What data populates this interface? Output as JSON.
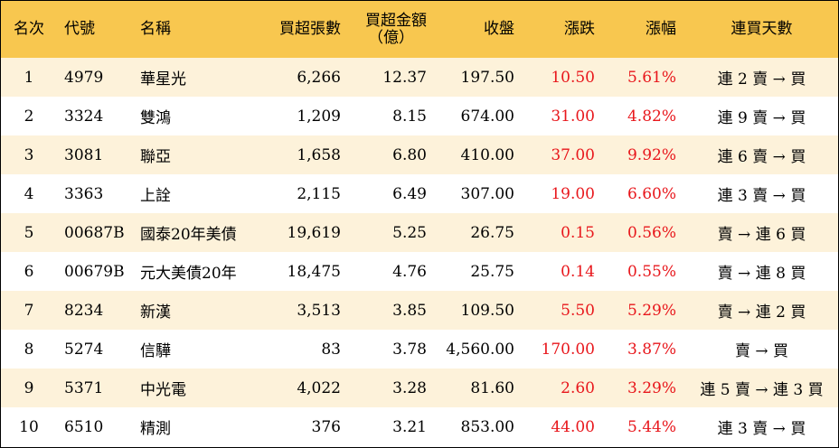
{
  "headers": {
    "rank": "名次",
    "code": "代號",
    "name": "名稱",
    "net_buy_lots": "買超張數",
    "net_buy_amount_line1": "買超金額",
    "net_buy_amount_line2": "（億）",
    "close": "收盤",
    "change": "漲跌",
    "change_pct": "漲幅",
    "streak": "連買天數"
  },
  "colors": {
    "header_bg": "#f8c74f",
    "alt_row_bg": "#fdf2da",
    "positive": "#e8161b"
  },
  "rows": [
    {
      "rank": "1",
      "code": "4979",
      "name": "華星光",
      "lots": "6,266",
      "amount": "12.37",
      "close": "197.50",
      "change": "10.50",
      "pct": "5.61%",
      "streak": "連 2 賣 → 買"
    },
    {
      "rank": "2",
      "code": "3324",
      "name": "雙鴻",
      "lots": "1,209",
      "amount": "8.15",
      "close": "674.00",
      "change": "31.00",
      "pct": "4.82%",
      "streak": "連 9 賣 → 買"
    },
    {
      "rank": "3",
      "code": "3081",
      "name": "聯亞",
      "lots": "1,658",
      "amount": "6.80",
      "close": "410.00",
      "change": "37.00",
      "pct": "9.92%",
      "streak": "連 6 賣 → 買"
    },
    {
      "rank": "4",
      "code": "3363",
      "name": "上詮",
      "lots": "2,115",
      "amount": "6.49",
      "close": "307.00",
      "change": "19.00",
      "pct": "6.60%",
      "streak": "連 3 賣 → 買"
    },
    {
      "rank": "5",
      "code": "00687B",
      "name": "國泰20年美債",
      "lots": "19,619",
      "amount": "5.25",
      "close": "26.75",
      "change": "0.15",
      "pct": "0.56%",
      "streak": "賣 → 連 6 買"
    },
    {
      "rank": "6",
      "code": "00679B",
      "name": "元大美債20年",
      "lots": "18,475",
      "amount": "4.76",
      "close": "25.75",
      "change": "0.14",
      "pct": "0.55%",
      "streak": "賣 → 連 8 買"
    },
    {
      "rank": "7",
      "code": "8234",
      "name": "新漢",
      "lots": "3,513",
      "amount": "3.85",
      "close": "109.50",
      "change": "5.50",
      "pct": "5.29%",
      "streak": "賣 → 連 2 買"
    },
    {
      "rank": "8",
      "code": "5274",
      "name": "信驊",
      "lots": "83",
      "amount": "3.78",
      "close": "4,560.00",
      "change": "170.00",
      "pct": "3.87%",
      "streak": "賣 → 買"
    },
    {
      "rank": "9",
      "code": "5371",
      "name": "中光電",
      "lots": "4,022",
      "amount": "3.28",
      "close": "81.60",
      "change": "2.60",
      "pct": "3.29%",
      "streak": "連 5 賣 → 連 3 買"
    },
    {
      "rank": "10",
      "code": "6510",
      "name": "精測",
      "lots": "376",
      "amount": "3.21",
      "close": "853.00",
      "change": "44.00",
      "pct": "5.44%",
      "streak": "連 3 賣 → 買"
    }
  ]
}
